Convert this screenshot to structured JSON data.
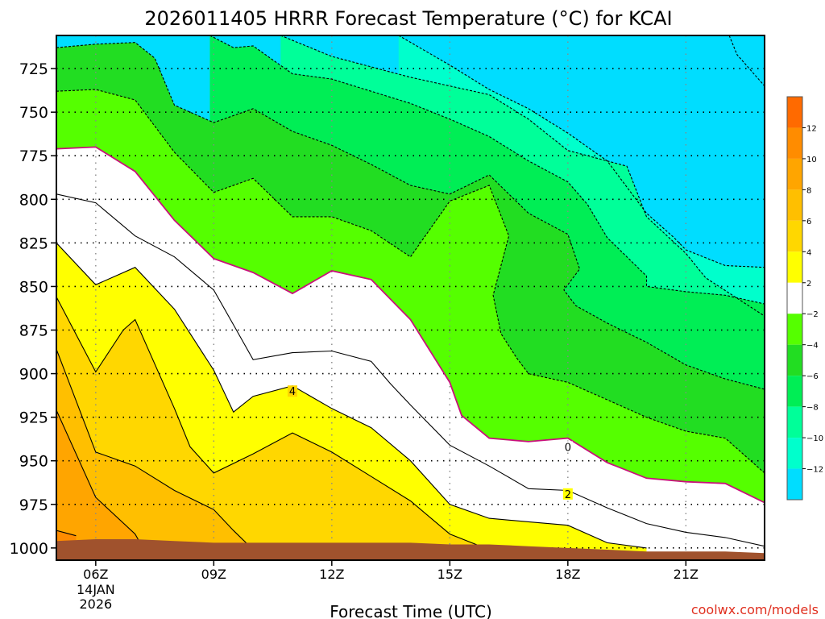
{
  "chart_data": {
    "type": "heatmap",
    "title": "2026011405 HRRR Forecast Temperature (°C) for KCAI",
    "xlabel": "Forecast Time (UTC)",
    "ylabel": "",
    "credit": "coolwx.com/models",
    "x_ticks": [
      {
        "hour": 6,
        "label": "06Z",
        "sub": [
          "14JAN",
          "2026"
        ]
      },
      {
        "hour": 9,
        "label": "09Z",
        "sub": []
      },
      {
        "hour": 12,
        "label": "12Z",
        "sub": []
      },
      {
        "hour": 15,
        "label": "15Z",
        "sub": []
      },
      {
        "hour": 18,
        "label": "18Z",
        "sub": []
      },
      {
        "hour": 21,
        "label": "21Z",
        "sub": []
      }
    ],
    "xlim": [
      5,
      23
    ],
    "y_ticks": [
      725,
      750,
      775,
      800,
      825,
      850,
      875,
      900,
      925,
      950,
      975,
      1000
    ],
    "ylim": [
      706,
      1007
    ],
    "colorbar": {
      "labels": [
        "12",
        "10",
        "8",
        "6",
        "4",
        "2",
        "−2",
        "−4",
        "−6",
        "−8",
        "−10",
        "−12"
      ],
      "bins": [
        {
          "min": 12,
          "max": 14,
          "color": "#ff6a00"
        },
        {
          "min": 10,
          "max": 12,
          "color": "#ff8c00"
        },
        {
          "min": 8,
          "max": 10,
          "color": "#ffa500"
        },
        {
          "min": 6,
          "max": 8,
          "color": "#ffbf00"
        },
        {
          "min": 4,
          "max": 6,
          "color": "#ffd700"
        },
        {
          "min": 2,
          "max": 4,
          "color": "#ffff00"
        },
        {
          "min": -2,
          "max": 2,
          "color": "#ffffff"
        },
        {
          "min": -4,
          "max": -2,
          "color": "#55ff00"
        },
        {
          "min": -6,
          "max": -4,
          "color": "#22dd22"
        },
        {
          "min": -8,
          "max": -6,
          "color": "#00ee55"
        },
        {
          "min": -10,
          "max": -8,
          "color": "#00ff99"
        },
        {
          "min": -12,
          "max": -10,
          "color": "#00ffcc"
        },
        {
          "min": -14,
          "max": -12,
          "color": "#00ddff"
        }
      ]
    },
    "ground_color": "#a0522d",
    "zero_line_color": "#c8107a",
    "contour_labels": [
      {
        "value": "4",
        "hour": 11,
        "p": 910
      },
      {
        "value": "0",
        "hour": 18,
        "p": 942
      },
      {
        "value": "2",
        "hour": 18,
        "p": 969
      }
    ],
    "isotherms": [
      {
        "t": -12,
        "style": "dashed",
        "points": [
          [
            22.1,
            706
          ],
          [
            22.3,
            717
          ],
          [
            23,
            735
          ]
        ]
      },
      {
        "t": -10,
        "style": "dashed",
        "points": [
          [
            13.7,
            706
          ],
          [
            15,
            723
          ],
          [
            16,
            737
          ],
          [
            17,
            748
          ],
          [
            18,
            762
          ],
          [
            19,
            778
          ],
          [
            20,
            808
          ],
          [
            20.7,
            822
          ],
          [
            21,
            829
          ],
          [
            22,
            838
          ],
          [
            23,
            839
          ]
        ]
      },
      {
        "t": -8,
        "style": "dashed",
        "points": [
          [
            10.7,
            706
          ],
          [
            12,
            718
          ],
          [
            14,
            730
          ],
          [
            16,
            740
          ],
          [
            17,
            754
          ],
          [
            18,
            772
          ],
          [
            19.5,
            781
          ],
          [
            20,
            810
          ],
          [
            21,
            831
          ],
          [
            21.5,
            845
          ],
          [
            23,
            867
          ]
        ]
      },
      {
        "t": -6,
        "style": "dashed",
        "points": [
          [
            8.9,
            706
          ],
          [
            9.5,
            713
          ],
          [
            10,
            712
          ],
          [
            11,
            728
          ],
          [
            12,
            731
          ],
          [
            14,
            745
          ],
          [
            15,
            754
          ],
          [
            16,
            764
          ],
          [
            17,
            778
          ],
          [
            18,
            790
          ],
          [
            18.5,
            803
          ],
          [
            19,
            822
          ],
          [
            20,
            844
          ],
          [
            20,
            850
          ],
          [
            21,
            853
          ],
          [
            22,
            855
          ],
          [
            23,
            860
          ]
        ]
      },
      {
        "t": -4,
        "style": "dashed",
        "points": [
          [
            5,
            713
          ],
          [
            6,
            711
          ],
          [
            7,
            710
          ],
          [
            7.5,
            719
          ],
          [
            8,
            746
          ],
          [
            9,
            756
          ],
          [
            10,
            748
          ],
          [
            11,
            761
          ],
          [
            12,
            769
          ],
          [
            13,
            780
          ],
          [
            14,
            792
          ],
          [
            15,
            797
          ],
          [
            16,
            786
          ],
          [
            17,
            808
          ],
          [
            18,
            820
          ],
          [
            18.3,
            840
          ],
          [
            17.9,
            852
          ],
          [
            18.2,
            861
          ],
          [
            19,
            871
          ],
          [
            20,
            882
          ],
          [
            21,
            895
          ],
          [
            22,
            903
          ],
          [
            23,
            909
          ]
        ]
      },
      {
        "t": -2,
        "style": "dashed",
        "points": [
          [
            5,
            738
          ],
          [
            6,
            737
          ],
          [
            7,
            743
          ],
          [
            8,
            773
          ],
          [
            9,
            796
          ],
          [
            10,
            788
          ],
          [
            11,
            810
          ],
          [
            12,
            810
          ],
          [
            13,
            818
          ],
          [
            14,
            833
          ],
          [
            15,
            801
          ],
          [
            16,
            792
          ],
          [
            16.5,
            821
          ],
          [
            16.1,
            855
          ],
          [
            16.3,
            877
          ],
          [
            16.7,
            891
          ],
          [
            17,
            900
          ],
          [
            18,
            905
          ],
          [
            19,
            915
          ],
          [
            20,
            925
          ],
          [
            21,
            933
          ],
          [
            22,
            937
          ],
          [
            23,
            957
          ]
        ]
      },
      {
        "t": 0,
        "style": "zero",
        "points": [
          [
            5,
            771
          ],
          [
            6,
            770
          ],
          [
            7,
            784
          ],
          [
            8,
            812
          ],
          [
            9,
            834
          ],
          [
            10,
            842
          ],
          [
            11,
            854
          ],
          [
            12,
            841
          ],
          [
            13,
            846
          ],
          [
            14,
            869
          ],
          [
            15,
            905
          ],
          [
            15.3,
            924
          ],
          [
            16,
            937
          ],
          [
            17,
            939
          ],
          [
            18,
            937
          ],
          [
            19,
            951
          ],
          [
            20,
            960
          ],
          [
            21,
            962
          ],
          [
            22,
            963
          ],
          [
            23,
            974
          ]
        ]
      },
      {
        "t": 2,
        "style": "solid",
        "points": [
          [
            5,
            797
          ],
          [
            6,
            802
          ],
          [
            7,
            821
          ],
          [
            8,
            833
          ],
          [
            9,
            852
          ],
          [
            9.5,
            872
          ],
          [
            10,
            892
          ],
          [
            11,
            888
          ],
          [
            12,
            887
          ],
          [
            13,
            893
          ],
          [
            13.5,
            906
          ],
          [
            14,
            918
          ],
          [
            15,
            941
          ],
          [
            16,
            953
          ],
          [
            17,
            966
          ],
          [
            18,
            967
          ],
          [
            19,
            977
          ],
          [
            20,
            986
          ],
          [
            21,
            991
          ],
          [
            22,
            994
          ],
          [
            23,
            999
          ]
        ]
      },
      {
        "t": 4,
        "style": "solid",
        "points": [
          [
            5,
            825
          ],
          [
            6,
            849
          ],
          [
            7,
            839
          ],
          [
            8,
            863
          ],
          [
            9,
            898
          ],
          [
            9.5,
            922
          ],
          [
            10,
            913
          ],
          [
            11,
            907
          ],
          [
            12,
            920
          ],
          [
            13,
            931
          ],
          [
            14,
            950
          ],
          [
            15,
            975
          ],
          [
            16,
            983
          ],
          [
            17,
            985
          ],
          [
            18,
            987
          ],
          [
            19,
            997
          ],
          [
            20,
            1000
          ]
        ]
      },
      {
        "t": 6,
        "style": "solid",
        "points": [
          [
            5,
            856
          ],
          [
            6,
            899
          ],
          [
            6.7,
            875
          ],
          [
            7,
            869
          ],
          [
            8,
            920
          ],
          [
            8.4,
            942
          ],
          [
            9,
            957
          ],
          [
            10,
            946
          ],
          [
            11,
            934
          ],
          [
            12,
            945
          ],
          [
            13,
            959
          ],
          [
            14,
            973
          ],
          [
            15,
            992
          ],
          [
            16,
            1001
          ]
        ]
      },
      {
        "t": 8,
        "style": "solid",
        "points": [
          [
            5,
            886
          ],
          [
            6,
            945
          ],
          [
            7,
            953
          ],
          [
            8,
            967
          ],
          [
            9,
            978
          ],
          [
            9.5,
            990
          ],
          [
            10,
            1001
          ]
        ]
      },
      {
        "t": 10,
        "style": "solid",
        "points": [
          [
            5,
            921
          ],
          [
            6,
            971
          ],
          [
            7,
            992
          ],
          [
            7.2,
            1000
          ]
        ]
      },
      {
        "t": 12,
        "style": "solid",
        "points": [
          [
            5,
            990
          ],
          [
            5.5,
            993
          ]
        ]
      }
    ],
    "surface": [
      [
        5,
        996
      ],
      [
        6,
        995
      ],
      [
        7,
        995
      ],
      [
        8,
        996
      ],
      [
        9,
        997
      ],
      [
        10,
        997
      ],
      [
        11,
        997
      ],
      [
        12,
        997
      ],
      [
        13,
        997
      ],
      [
        14,
        997
      ],
      [
        15,
        998
      ],
      [
        16,
        998
      ],
      [
        17,
        999
      ],
      [
        18,
        1000
      ],
      [
        19,
        1001
      ],
      [
        20,
        1002
      ],
      [
        21,
        1002
      ],
      [
        22,
        1002
      ],
      [
        23,
        1003
      ]
    ]
  }
}
